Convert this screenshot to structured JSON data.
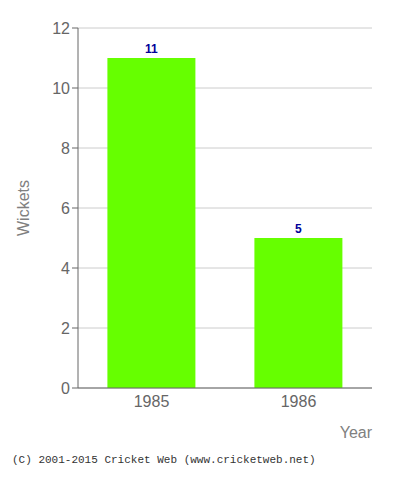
{
  "chart_data": {
    "type": "bar",
    "categories": [
      "1985",
      "1986"
    ],
    "values": [
      11,
      5
    ],
    "color": "#66ff00",
    "xlabel": "Year",
    "ylabel": "Wickets",
    "ylim": [
      0,
      12
    ],
    "yticks": [
      0,
      2,
      4,
      6,
      8,
      10,
      12
    ],
    "grid": true,
    "data_labels": true,
    "annotations": [
      "(C) 2001-2015 Cricket Web (www.cricketweb.net)"
    ]
  }
}
